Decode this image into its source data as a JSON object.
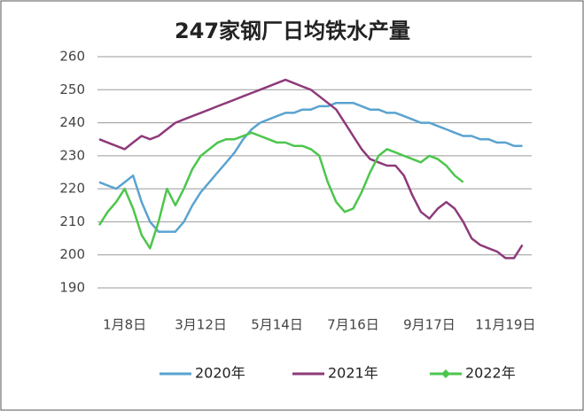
{
  "chart_data": {
    "type": "line",
    "title": "247家钢厂日均铁水产量",
    "categories": [
      null,
      null,
      null,
      "1月8日",
      null,
      null,
      null,
      null,
      null,
      null,
      null,
      null,
      "3月12日",
      null,
      null,
      null,
      null,
      null,
      null,
      null,
      null,
      "5月14日",
      null,
      null,
      null,
      null,
      null,
      null,
      null,
      null,
      "7月16日",
      null,
      null,
      null,
      null,
      null,
      null,
      null,
      null,
      "9月17日",
      null,
      null,
      null,
      null,
      null,
      null,
      null,
      null,
      "11月19日",
      null,
      null
    ],
    "series": [
      {
        "name": "2020年",
        "color": "#5aa3d0",
        "values": [
          222,
          221,
          220,
          222,
          224,
          216,
          210,
          207,
          207,
          207,
          210,
          215,
          219,
          222,
          225,
          228,
          231,
          235,
          238,
          240,
          241,
          242,
          243,
          243,
          244,
          244,
          245,
          245,
          246,
          246,
          246,
          245,
          244,
          244,
          243,
          243,
          242,
          241,
          240,
          240,
          239,
          238,
          237,
          236,
          236,
          235,
          235,
          234,
          234,
          233,
          233
        ]
      },
      {
        "name": "2021年",
        "color": "#8e3a7a",
        "values": [
          235,
          234,
          233,
          232,
          234,
          236,
          235,
          236,
          238,
          240,
          241,
          242,
          243,
          244,
          245,
          246,
          247,
          248,
          249,
          250,
          251,
          252,
          253,
          252,
          251,
          250,
          248,
          246,
          244,
          240,
          236,
          232,
          229,
          228,
          227,
          227,
          224,
          218,
          213,
          211,
          214,
          216,
          214,
          210,
          205,
          203,
          202,
          201,
          199,
          199,
          203
        ]
      },
      {
        "name": "2022年",
        "color": "#4cc64c",
        "values": [
          209,
          213,
          216,
          220,
          214,
          206,
          202,
          210,
          220,
          215,
          220,
          226,
          230,
          232,
          234,
          235,
          235,
          236,
          237,
          236,
          235,
          234,
          234,
          233,
          233,
          232,
          230,
          222,
          216,
          213,
          214,
          219,
          225,
          230,
          232,
          231,
          230,
          229,
          228,
          230,
          229,
          227,
          224,
          222,
          null,
          null,
          null,
          null,
          null,
          null,
          null
        ]
      }
    ],
    "ylim": [
      190,
      260
    ],
    "yticks": [
      190,
      200,
      210,
      220,
      230,
      240,
      250,
      260
    ],
    "grid": true
  }
}
